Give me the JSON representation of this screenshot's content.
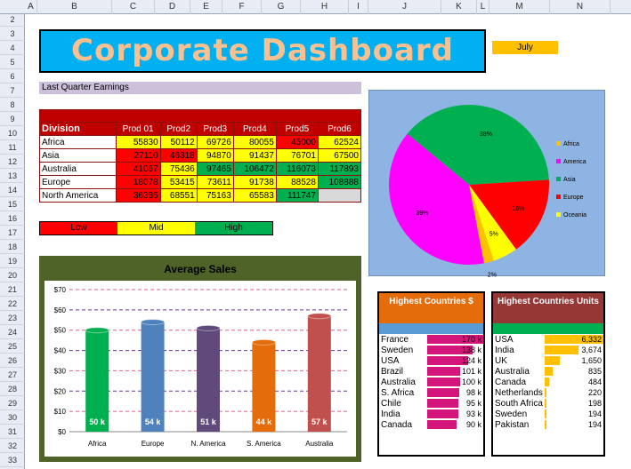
{
  "columns": [
    "A",
    "B",
    "C",
    "D",
    "E",
    "F",
    "G",
    "H",
    "I",
    "J",
    "K",
    "L",
    "M",
    "N"
  ],
  "rows": [
    "2",
    "3",
    "4",
    "5",
    "6",
    "7",
    "8",
    "9",
    "10",
    "11",
    "12",
    "13",
    "14",
    "15",
    "16",
    "17",
    "18",
    "19",
    "20",
    "21",
    "22",
    "23",
    "24",
    "25",
    "26",
    "27",
    "28",
    "29",
    "30",
    "31",
    "32",
    "33"
  ],
  "title": "Corporate Dashboard",
  "month": "July",
  "earnings_label": "Last Quarter Earnings",
  "table": {
    "headers": [
      "Division",
      "Prod 01",
      "Prod2",
      "Prod3",
      "Prod4",
      "Prod5",
      "Prod6"
    ],
    "rows": [
      {
        "name": "Africa",
        "values": [
          "55830",
          "50112",
          "69726",
          "80055",
          "45000",
          "62524"
        ],
        "colors": [
          "y",
          "y",
          "y",
          "y",
          "r",
          "y"
        ]
      },
      {
        "name": "Asia",
        "values": [
          "27110",
          "46318",
          "94870",
          "91437",
          "76701",
          "67500"
        ],
        "colors": [
          "r",
          "r",
          "y",
          "y",
          "y",
          "y"
        ]
      },
      {
        "name": "Australia",
        "values": [
          "41067",
          "75436",
          "97465",
          "106472",
          "116073",
          "117893"
        ],
        "colors": [
          "r",
          "y",
          "g",
          "g",
          "g",
          "g"
        ]
      },
      {
        "name": "Europe",
        "values": [
          "18078",
          "53415",
          "73611",
          "91738",
          "88528",
          "108888"
        ],
        "colors": [
          "r",
          "y",
          "y",
          "y",
          "y",
          "g"
        ]
      },
      {
        "name": "North America",
        "values": [
          "36385",
          "68551",
          "75163",
          "65583",
          "111747",
          ""
        ],
        "colors": [
          "r",
          "y",
          "y",
          "y",
          "g",
          "gy"
        ]
      }
    ]
  },
  "legend": [
    {
      "label": "Low",
      "color": "#ff0000"
    },
    {
      "label": "Mid",
      "color": "#ffff00"
    },
    {
      "label": "High",
      "color": "#00b050"
    }
  ],
  "chart_data": [
    {
      "type": "bar",
      "title": "Average Sales",
      "categories": [
        "Africa",
        "Europe",
        "N. America",
        "S. America",
        "Australia"
      ],
      "values": [
        50,
        54,
        51,
        44,
        57
      ],
      "data_labels": [
        "50 k",
        "54 k",
        "51 k",
        "44 k",
        "57 k"
      ],
      "colors": [
        "#00b050",
        "#4f81bd",
        "#604a7b",
        "#e46c0a",
        "#c0504d"
      ],
      "ylim": [
        0,
        70
      ],
      "yticks": [
        "$0",
        "$10",
        "$20",
        "$30",
        "$40",
        "$50",
        "$60",
        "$70"
      ]
    },
    {
      "type": "pie",
      "categories": [
        "Africa",
        "America",
        "Asia",
        "Europe",
        "Oceania"
      ],
      "values": [
        2,
        39,
        38,
        16,
        5
      ],
      "labels": [
        "2%",
        "39%",
        "38%",
        "16%",
        "5%"
      ],
      "colors": [
        "#ffc000",
        "#ff00ff",
        "#00b050",
        "#ff0000",
        "#ffff00"
      ],
      "legend_position": "right"
    }
  ],
  "highest_countries_dollars": {
    "title": "Highest Countries $",
    "rows": [
      {
        "country": "France",
        "value": "170 k",
        "fraction": 1.0
      },
      {
        "country": "Sweden",
        "value": "138 k",
        "fraction": 0.81
      },
      {
        "country": "USA",
        "value": "124 k",
        "fraction": 0.73
      },
      {
        "country": "Brazil",
        "value": "101 k",
        "fraction": 0.59
      },
      {
        "country": "Australia",
        "value": "100 k",
        "fraction": 0.59
      },
      {
        "country": "S. Africa",
        "value": "98 k",
        "fraction": 0.58
      },
      {
        "country": "Chile",
        "value": "95 k",
        "fraction": 0.56
      },
      {
        "country": "India",
        "value": "93 k",
        "fraction": 0.55
      },
      {
        "country": "Canada",
        "value": "90 k",
        "fraction": 0.53
      }
    ],
    "bar_color": "#d4157a"
  },
  "highest_countries_units": {
    "title": "Highest Countries Units",
    "rows": [
      {
        "country": "USA",
        "value": "6,332",
        "fraction": 1.0
      },
      {
        "country": "India",
        "value": "3,674",
        "fraction": 0.58
      },
      {
        "country": "UK",
        "value": "1,650",
        "fraction": 0.26
      },
      {
        "country": "Australia",
        "value": "835",
        "fraction": 0.13
      },
      {
        "country": "Canada",
        "value": "484",
        "fraction": 0.08
      },
      {
        "country": "Netherlands",
        "value": "220",
        "fraction": 0.035
      },
      {
        "country": "South Africa",
        "value": "198",
        "fraction": 0.031
      },
      {
        "country": "Sweden",
        "value": "194",
        "fraction": 0.031
      },
      {
        "country": "Pakistan",
        "value": "194",
        "fraction": 0.031
      }
    ],
    "bar_color": "#ffc000"
  }
}
